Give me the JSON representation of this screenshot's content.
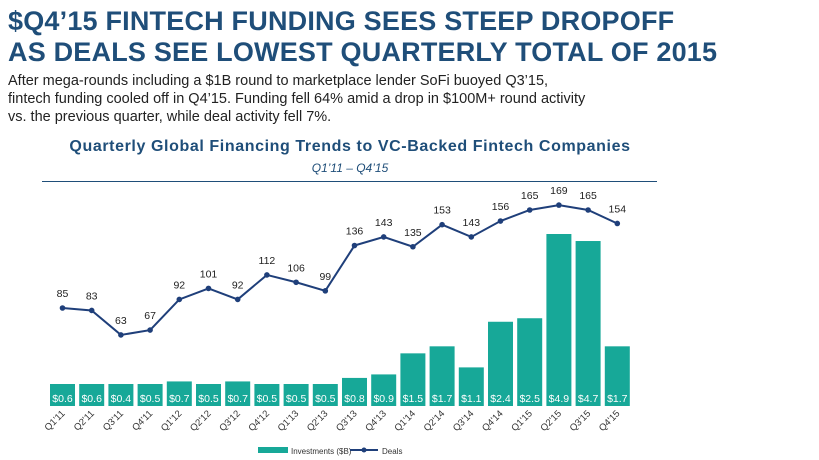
{
  "headline": {
    "line1": "$Q4’15 FINTECH FUNDING SEES STEEP DROPOFF",
    "line2": "AS DEALS SEE LOWEST QUARTERLY TOTAL OF 2015"
  },
  "body": {
    "line1": "After mega-rounds including a $1B round to marketplace lender SoFi buoyed Q3’15,",
    "line2": "fintech funding cooled off in Q4’15. Funding fell 64% amid a drop in $100M+ round activity",
    "line3": "vs. the previous quarter, while deal activity fell 7%."
  },
  "colors": {
    "bars": "#17a898",
    "line": "#1f3f7a",
    "title": "#1f4e79"
  },
  "chart_data": {
    "type": "bar+line",
    "title": "Quarterly Global Financing Trends to VC-Backed Fintech Companies",
    "subtitle": "Q1’11 – Q4’15",
    "categories": [
      "Q1'11",
      "Q2'11",
      "Q3'11",
      "Q4'11",
      "Q1'12",
      "Q2'12",
      "Q3'12",
      "Q4'12",
      "Q1'13",
      "Q2'13",
      "Q3'13",
      "Q4'13",
      "Q1'14",
      "Q2'14",
      "Q3'14",
      "Q4'14",
      "Q1'15",
      "Q2'15",
      "Q3'15",
      "Q4'15"
    ],
    "series": [
      {
        "name": "Investments ($B)",
        "kind": "bar",
        "values": [
          0.6,
          0.6,
          0.4,
          0.5,
          0.7,
          0.5,
          0.7,
          0.5,
          0.5,
          0.5,
          0.8,
          0.9,
          1.5,
          1.7,
          1.1,
          2.4,
          2.5,
          4.9,
          4.7,
          1.7
        ],
        "labels": [
          "$0.6",
          "$0.6",
          "$0.4",
          "$0.5",
          "$0.7",
          "$0.5",
          "$0.7",
          "$0.5",
          "$0.5",
          "$0.5",
          "$0.8",
          "$0.9",
          "$1.5",
          "$1.7",
          "$1.1",
          "$2.4",
          "$2.5",
          "$4.9",
          "$4.7",
          "$1.7"
        ]
      },
      {
        "name": "Deals",
        "kind": "line",
        "values": [
          85,
          83,
          63,
          67,
          92,
          101,
          92,
          112,
          106,
          99,
          136,
          143,
          135,
          153,
          143,
          156,
          165,
          169,
          165,
          154
        ]
      }
    ],
    "legend": "bottom-center",
    "grid": false
  }
}
